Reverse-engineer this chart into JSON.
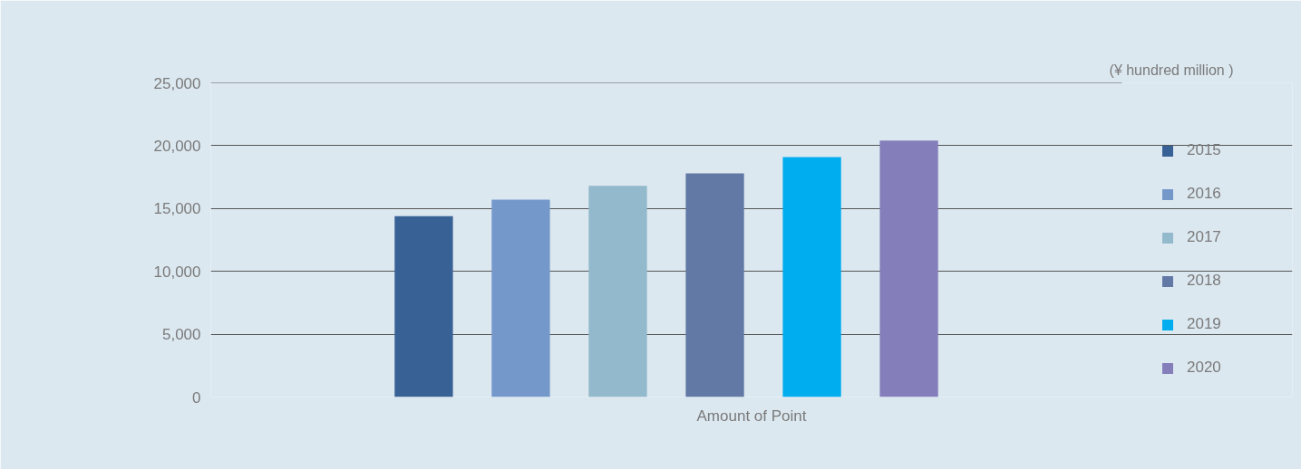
{
  "chart_data": {
    "type": "bar",
    "categories": [
      null
    ],
    "xlabel": "Amount of Point",
    "ylabel": "(¥ hundred million )",
    "series": [
      {
        "name": "2015",
        "color": "#386296",
        "values": [
          14400
        ]
      },
      {
        "name": "2016",
        "color": "#7598cb",
        "values": [
          15700
        ]
      },
      {
        "name": "2017",
        "color": "#92b9cc",
        "values": [
          16800
        ]
      },
      {
        "name": "2018",
        "color": "#6278a5",
        "values": [
          17800
        ]
      },
      {
        "name": "2019",
        "color": "#00adee",
        "values": [
          19100
        ]
      },
      {
        "name": "2020",
        "color": "#847ebb",
        "values": [
          20400
        ]
      }
    ],
    "ylim": [
      0,
      25000
    ],
    "yticks": [
      {
        "value": 0,
        "label": "0"
      },
      {
        "value": 5000,
        "label": "5,000"
      },
      {
        "value": 10000,
        "label": "10,000"
      },
      {
        "value": 15000,
        "label": "15,000"
      },
      {
        "value": 20000,
        "label": "20,000"
      },
      {
        "value": 25000,
        "label": "25,000"
      }
    ],
    "grid": "y",
    "legend": "right"
  }
}
